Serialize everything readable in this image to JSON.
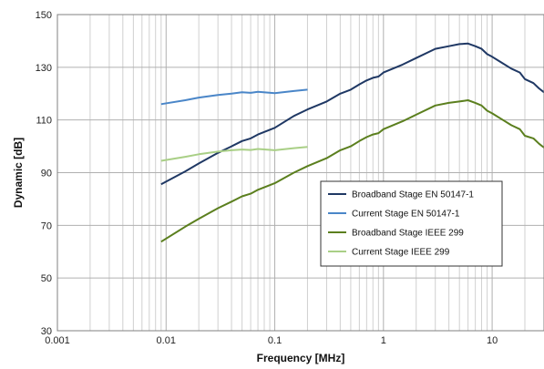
{
  "chart_data": {
    "type": "line",
    "xlabel": "Frequency [MHz]",
    "ylabel": "Dynamic [dB]",
    "x_scale": "log",
    "xlim": [
      0.001,
      30
    ],
    "ylim": [
      30,
      150
    ],
    "x_ticks": [
      0.001,
      0.01,
      0.1,
      1,
      10
    ],
    "x_tick_labels": [
      "0.001",
      "0.01",
      "0.1",
      "1",
      "10"
    ],
    "y_ticks": [
      30,
      50,
      70,
      90,
      110,
      130,
      150
    ],
    "y_tick_labels": [
      "30",
      "50",
      "70",
      "90",
      "110",
      "130",
      "150"
    ],
    "grid": "on",
    "legend_position": "center-right",
    "series": [
      {
        "name": "Broadband Stage EN 50147-1",
        "color": "#1f3864",
        "points": [
          [
            0.009,
            85.6
          ],
          [
            0.015,
            90.5
          ],
          [
            0.02,
            93.5
          ],
          [
            0.03,
            97.5
          ],
          [
            0.04,
            100.0
          ],
          [
            0.05,
            102.0
          ],
          [
            0.06,
            103.0
          ],
          [
            0.07,
            104.5
          ],
          [
            0.1,
            107.0
          ],
          [
            0.15,
            111.5
          ],
          [
            0.2,
            114.0
          ],
          [
            0.3,
            117.0
          ],
          [
            0.4,
            120.0
          ],
          [
            0.5,
            121.5
          ],
          [
            0.6,
            123.5
          ],
          [
            0.7,
            125.0
          ],
          [
            0.8,
            126.0
          ],
          [
            0.9,
            126.5
          ],
          [
            1.0,
            128.0
          ],
          [
            1.5,
            131.0
          ],
          [
            2.0,
            133.5
          ],
          [
            3.0,
            137.0
          ],
          [
            4.0,
            138.0
          ],
          [
            5.0,
            138.8
          ],
          [
            6.0,
            139.0
          ],
          [
            7.0,
            138.0
          ],
          [
            8.0,
            137.0
          ],
          [
            9.0,
            135.0
          ],
          [
            10.0,
            134.0
          ],
          [
            12.0,
            132.0
          ],
          [
            15.0,
            129.5
          ],
          [
            18.0,
            128.0
          ],
          [
            20.0,
            125.5
          ],
          [
            24.0,
            124.0
          ],
          [
            27.0,
            122.0
          ],
          [
            30.0,
            120.5
          ]
        ]
      },
      {
        "name": "Current Stage EN 50147-1",
        "color": "#4a86c8",
        "points": [
          [
            0.009,
            116.0
          ],
          [
            0.015,
            117.5
          ],
          [
            0.02,
            118.5
          ],
          [
            0.03,
            119.5
          ],
          [
            0.04,
            120.0
          ],
          [
            0.05,
            120.5
          ],
          [
            0.06,
            120.3
          ],
          [
            0.07,
            120.7
          ],
          [
            0.1,
            120.2
          ],
          [
            0.15,
            121.0
          ],
          [
            0.2,
            121.5
          ]
        ]
      },
      {
        "name": "Broadband Stage IEEE 299",
        "color": "#5b7f1e",
        "points": [
          [
            0.009,
            63.8
          ],
          [
            0.015,
            69.5
          ],
          [
            0.02,
            72.5
          ],
          [
            0.03,
            76.5
          ],
          [
            0.04,
            79.0
          ],
          [
            0.05,
            81.0
          ],
          [
            0.06,
            82.0
          ],
          [
            0.07,
            83.5
          ],
          [
            0.1,
            86.0
          ],
          [
            0.15,
            90.0
          ],
          [
            0.2,
            92.5
          ],
          [
            0.3,
            95.5
          ],
          [
            0.4,
            98.5
          ],
          [
            0.5,
            100.0
          ],
          [
            0.6,
            102.0
          ],
          [
            0.7,
            103.5
          ],
          [
            0.8,
            104.5
          ],
          [
            0.9,
            105.0
          ],
          [
            1.0,
            106.5
          ],
          [
            1.5,
            109.5
          ],
          [
            2.0,
            112.0
          ],
          [
            3.0,
            115.5
          ],
          [
            4.0,
            116.5
          ],
          [
            5.0,
            117.0
          ],
          [
            6.0,
            117.5
          ],
          [
            7.0,
            116.5
          ],
          [
            8.0,
            115.5
          ],
          [
            9.0,
            113.5
          ],
          [
            10.0,
            112.5
          ],
          [
            12.0,
            110.5
          ],
          [
            15.0,
            108.0
          ],
          [
            18.0,
            106.5
          ],
          [
            20.0,
            104.0
          ],
          [
            24.0,
            103.0
          ],
          [
            27.0,
            101.0
          ],
          [
            30.0,
            99.5
          ]
        ]
      },
      {
        "name": "Current Stage IEEE 299",
        "color": "#a9cf86",
        "points": [
          [
            0.009,
            94.5
          ],
          [
            0.015,
            96.0
          ],
          [
            0.02,
            97.0
          ],
          [
            0.03,
            98.0
          ],
          [
            0.04,
            98.5
          ],
          [
            0.05,
            98.8
          ],
          [
            0.06,
            98.6
          ],
          [
            0.07,
            99.0
          ],
          [
            0.1,
            98.5
          ],
          [
            0.15,
            99.3
          ],
          [
            0.2,
            99.8
          ]
        ]
      }
    ]
  }
}
